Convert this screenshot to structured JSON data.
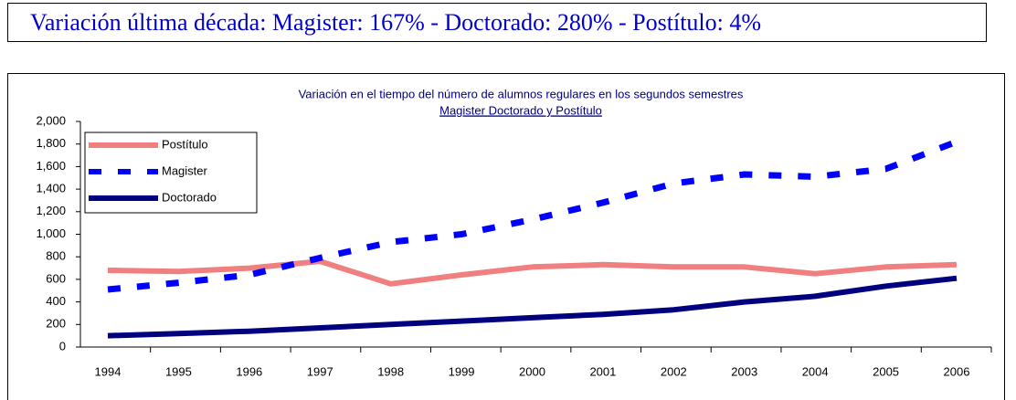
{
  "header": {
    "text": "Variación última década: Magister: 167% - Doctorado: 280% - Postítulo: 4%"
  },
  "chart_data": {
    "type": "line",
    "title": "Variación en el tiempo del número de alumnos  regulares en los segundos semestres",
    "subtitle": "Magister Doctorado y Postítulo",
    "categories": [
      "1994",
      "1995",
      "1996",
      "1997",
      "1998",
      "1999",
      "2000",
      "2001",
      "2002",
      "2003",
      "2004",
      "2005",
      "2006"
    ],
    "series": [
      {
        "name": "Postítulo",
        "color": "#f08080",
        "style": "solid",
        "values": [
          680,
          670,
          700,
          760,
          560,
          640,
          710,
          730,
          710,
          710,
          650,
          710,
          730
        ]
      },
      {
        "name": "Magister",
        "color": "#0000ff",
        "style": "dashed",
        "values": [
          510,
          570,
          640,
          790,
          930,
          1000,
          1130,
          1280,
          1450,
          1530,
          1510,
          1580,
          1820
        ]
      },
      {
        "name": "Doctorado",
        "color": "#000080",
        "style": "solid",
        "values": [
          100,
          120,
          140,
          170,
          200,
          230,
          260,
          290,
          330,
          400,
          450,
          540,
          610
        ]
      }
    ],
    "ylim": [
      0,
      2000
    ],
    "yticks": [
      0,
      200,
      400,
      600,
      800,
      {
        "value": 1000,
        "label": "1,000"
      },
      {
        "value": 1200,
        "label": "1,200"
      },
      {
        "value": 1400,
        "label": "1,400"
      },
      {
        "value": 1600,
        "label": "1,600"
      },
      {
        "value": 1800,
        "label": "1,800"
      },
      {
        "value": 2000,
        "label": "2,000"
      }
    ],
    "legend": "top-left"
  }
}
